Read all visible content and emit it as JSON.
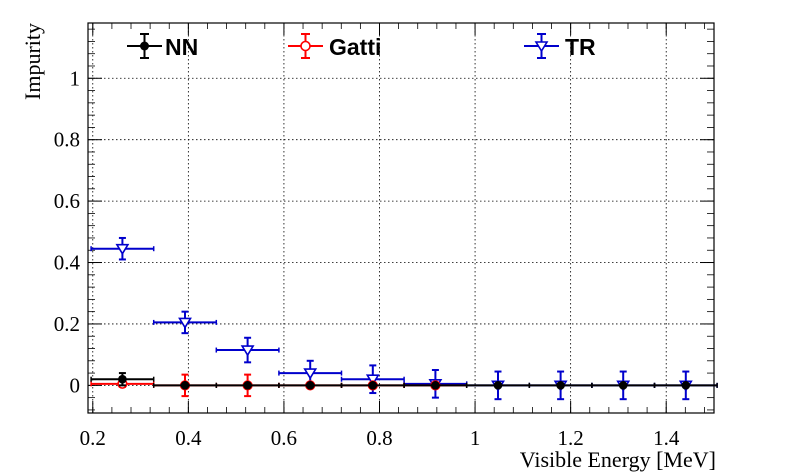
{
  "chart_data": {
    "type": "scatter",
    "title": "",
    "xlabel": "Visible Energy [MeV]",
    "ylabel": "Impurity",
    "xlim": [
      0.19,
      1.5
    ],
    "ylim": [
      -0.09,
      1.18
    ],
    "grid": true,
    "legend_position": "top",
    "x_ticks": [
      0.2,
      0.4,
      0.6,
      0.8,
      1,
      1.2,
      1.4
    ],
    "x_tick_labels": [
      "0.2",
      "0.4",
      "0.6",
      "0.8",
      "1",
      "1.2",
      "1.4"
    ],
    "y_ticks": [
      0,
      0.2,
      0.4,
      0.6,
      0.8,
      1
    ],
    "y_tick_labels": [
      "0",
      "0.2",
      "0.4",
      "0.6",
      "0.8",
      "1"
    ],
    "series": [
      {
        "name": "NN",
        "color": "#000000",
        "marker": "filled-circle",
        "x": [
          0.262,
          0.393,
          0.524,
          0.655,
          0.786,
          0.917,
          1.048,
          1.179,
          1.31,
          1.441
        ],
        "xerr": [
          0.0655,
          0.0655,
          0.0655,
          0.0655,
          0.0655,
          0.0655,
          0.0655,
          0.0655,
          0.0655,
          0.0655
        ],
        "y": [
          0.02,
          0.0,
          0.0,
          0.0,
          0.0,
          0.0,
          0.0,
          0.0,
          0.0,
          0.0
        ],
        "yerr": [
          0.02,
          0.0,
          0.0,
          0.0,
          0.0,
          0.0,
          0.0,
          0.0,
          0.0,
          0.0
        ]
      },
      {
        "name": "Gatti",
        "color": "#ff0000",
        "marker": "open-circle",
        "x": [
          0.262,
          0.393,
          0.524,
          0.655,
          0.786,
          0.917
        ],
        "xerr": [
          0.0655,
          0.0655,
          0.0655,
          0.0655,
          0.0655,
          0.0655
        ],
        "y": [
          0.005,
          0.0,
          0.0,
          0.0,
          0.0,
          0.0
        ],
        "yerr": [
          0.01,
          0.035,
          0.035,
          0.0,
          0.0,
          0.0
        ]
      },
      {
        "name": "TR",
        "color": "#0000cc",
        "marker": "open-triangle-down",
        "x": [
          0.262,
          0.393,
          0.524,
          0.655,
          0.786,
          0.917,
          1.048,
          1.179,
          1.31,
          1.441
        ],
        "xerr": [
          0.0655,
          0.0655,
          0.0655,
          0.0655,
          0.0655,
          0.0655,
          0.0655,
          0.0655,
          0.0655,
          0.0655
        ],
        "y": [
          0.445,
          0.205,
          0.115,
          0.04,
          0.02,
          0.005,
          0.0,
          0.0,
          0.0,
          0.0
        ],
        "yerr": [
          0.035,
          0.035,
          0.04,
          0.04,
          0.045,
          0.045,
          0.045,
          0.045,
          0.045,
          0.045
        ]
      }
    ]
  }
}
